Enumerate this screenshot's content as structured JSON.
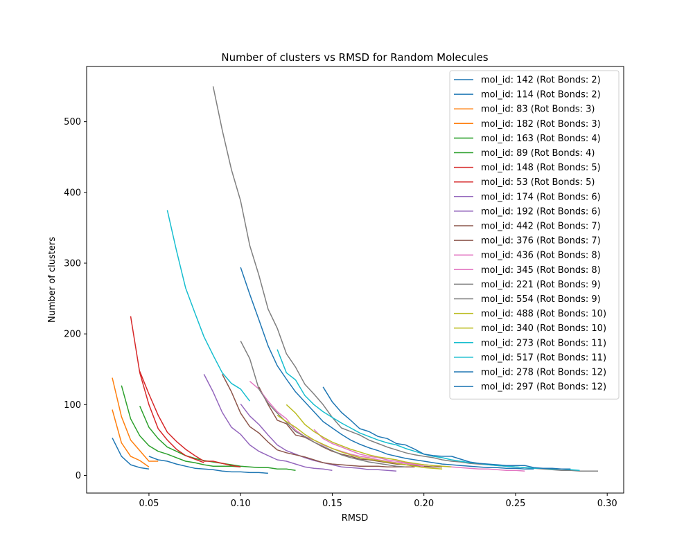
{
  "chart_data": {
    "type": "line",
    "title": "Number of clusters vs RMSD for Random Molecules",
    "xlabel": "RMSD",
    "ylabel": "Number of clusters",
    "xlim": [
      0.016,
      0.309
    ],
    "ylim": [
      -25,
      578
    ],
    "xticks": [
      0.05,
      0.1,
      0.15,
      0.2,
      0.25,
      0.3
    ],
    "xtick_labels": [
      "0.05",
      "0.10",
      "0.15",
      "0.20",
      "0.25",
      "0.30"
    ],
    "yticks": [
      0,
      100,
      200,
      300,
      400,
      500
    ],
    "ytick_labels": [
      "0",
      "100",
      "200",
      "300",
      "400",
      "500"
    ],
    "grid": false,
    "legend_position": "top-right",
    "series": [
      {
        "name": "mol_id: 142 (Rot Bonds: 2)",
        "color": "#1f77b4",
        "x": [
          0.03,
          0.035,
          0.04,
          0.045,
          0.05
        ],
        "y": [
          53,
          27,
          15,
          11,
          9
        ]
      },
      {
        "name": "mol_id: 114 (Rot Bonds: 2)",
        "color": "#1f77b4",
        "x": [
          0.05,
          0.055,
          0.06,
          0.065,
          0.07,
          0.075,
          0.08,
          0.085,
          0.09,
          0.095,
          0.1,
          0.105,
          0.11,
          0.115
        ],
        "y": [
          27,
          22,
          20,
          16,
          13,
          10,
          9,
          8,
          6,
          5,
          5,
          4,
          4,
          3
        ]
      },
      {
        "name": "mol_id: 83 (Rot Bonds: 3)",
        "color": "#ff7f0e",
        "x": [
          0.03,
          0.035,
          0.04,
          0.045,
          0.05
        ],
        "y": [
          93,
          46,
          27,
          21,
          12
        ]
      },
      {
        "name": "mol_id: 182 (Rot Bonds: 3)",
        "color": "#ff7f0e",
        "x": [
          0.03,
          0.035,
          0.04,
          0.045,
          0.05,
          0.055
        ],
        "y": [
          138,
          83,
          50,
          35,
          20,
          20
        ]
      },
      {
        "name": "mol_id: 163 (Rot Bonds: 4)",
        "color": "#2ca02c",
        "x": [
          0.035,
          0.04,
          0.045,
          0.05,
          0.055,
          0.06,
          0.065,
          0.07,
          0.075,
          0.08,
          0.085,
          0.09,
          0.095,
          0.1
        ],
        "y": [
          127,
          80,
          56,
          42,
          34,
          30,
          25,
          20,
          18,
          15,
          13,
          13,
          13,
          12
        ]
      },
      {
        "name": "mol_id: 89 (Rot Bonds: 4)",
        "color": "#2ca02c",
        "x": [
          0.045,
          0.05,
          0.055,
          0.06,
          0.065,
          0.07,
          0.075,
          0.08,
          0.085,
          0.09,
          0.095,
          0.1,
          0.105,
          0.11,
          0.115,
          0.12,
          0.125,
          0.13
        ],
        "y": [
          98,
          68,
          52,
          40,
          34,
          28,
          24,
          21,
          19,
          17,
          15,
          13,
          12,
          11,
          11,
          9,
          9,
          7
        ]
      },
      {
        "name": "mol_id: 148 (Rot Bonds: 5)",
        "color": "#d62728",
        "x": [
          0.04,
          0.045,
          0.05,
          0.055,
          0.06,
          0.065,
          0.07,
          0.075,
          0.08
        ],
        "y": [
          225,
          145,
          100,
          66,
          50,
          37,
          28,
          23,
          18
        ]
      },
      {
        "name": "mol_id: 53 (Rot Bonds: 5)",
        "color": "#d62728",
        "x": [
          0.045,
          0.05,
          0.055,
          0.06,
          0.065,
          0.07,
          0.075,
          0.08,
          0.085,
          0.09,
          0.095,
          0.1
        ],
        "y": [
          147,
          115,
          85,
          61,
          48,
          37,
          28,
          20,
          20,
          17,
          14,
          12
        ]
      },
      {
        "name": "mol_id: 174 (Rot Bonds: 6)",
        "color": "#9467bd",
        "x": [
          0.08,
          0.085,
          0.09,
          0.095,
          0.1,
          0.105,
          0.11,
          0.115,
          0.12,
          0.125,
          0.13,
          0.135,
          0.14,
          0.145,
          0.15
        ],
        "y": [
          143,
          118,
          89,
          68,
          58,
          43,
          34,
          28,
          22,
          20,
          16,
          12,
          10,
          9,
          7
        ]
      },
      {
        "name": "mol_id: 192 (Rot Bonds: 6)",
        "color": "#9467bd",
        "x": [
          0.1,
          0.105,
          0.11,
          0.115,
          0.12,
          0.125,
          0.13,
          0.135,
          0.14,
          0.145,
          0.15,
          0.155,
          0.16,
          0.165,
          0.17,
          0.175,
          0.18,
          0.185
        ],
        "y": [
          101,
          84,
          72,
          57,
          43,
          35,
          30,
          25,
          21,
          18,
          15,
          12,
          11,
          10,
          8,
          8,
          7,
          6
        ]
      },
      {
        "name": "mol_id: 442 (Rot Bonds: 7)",
        "color": "#8c564b",
        "x": [
          0.09,
          0.095,
          0.1,
          0.105,
          0.11,
          0.115,
          0.12,
          0.125,
          0.13,
          0.135,
          0.14,
          0.145,
          0.15,
          0.155,
          0.16,
          0.165,
          0.17,
          0.175,
          0.18,
          0.185,
          0.19,
          0.195
        ],
        "y": [
          143,
          118,
          88,
          69,
          60,
          47,
          36,
          32,
          29,
          26,
          22,
          18,
          16,
          15,
          14,
          13,
          13,
          13,
          12,
          12,
          12,
          12
        ]
      },
      {
        "name": "mol_id: 376 (Rot Bonds: 7)",
        "color": "#8c564b",
        "x": [
          0.11,
          0.115,
          0.12,
          0.125,
          0.13,
          0.135,
          0.14,
          0.145,
          0.15,
          0.155,
          0.16,
          0.165,
          0.17,
          0.175,
          0.18,
          0.185,
          0.19,
          0.195,
          0.2,
          0.205,
          0.21
        ],
        "y": [
          125,
          100,
          78,
          73,
          57,
          54,
          47,
          40,
          34,
          30,
          27,
          23,
          22,
          20,
          18,
          16,
          15,
          14,
          13,
          12,
          12
        ]
      },
      {
        "name": "mol_id: 436 (Rot Bonds: 8)",
        "color": "#e377c2",
        "x": [
          0.105,
          0.11,
          0.115,
          0.12,
          0.125,
          0.13,
          0.135,
          0.14,
          0.145,
          0.15,
          0.155,
          0.16,
          0.165,
          0.17,
          0.175,
          0.18,
          0.185,
          0.19,
          0.195,
          0.2
        ],
        "y": [
          133,
          122,
          105,
          90,
          80,
          64,
          55,
          50,
          43,
          38,
          34,
          30,
          27,
          25,
          22,
          20,
          18,
          17,
          15,
          13
        ]
      },
      {
        "name": "mol_id: 345 (Rot Bonds: 8)",
        "color": "#e377c2",
        "x": [
          0.14,
          0.145,
          0.15,
          0.155,
          0.16,
          0.165,
          0.17,
          0.175,
          0.18,
          0.185,
          0.19,
          0.195,
          0.2,
          0.205,
          0.21,
          0.215,
          0.22,
          0.225,
          0.23,
          0.235,
          0.24,
          0.245,
          0.25,
          0.255
        ],
        "y": [
          65,
          52,
          45,
          40,
          35,
          30,
          27,
          25,
          22,
          20,
          18,
          16,
          15,
          14,
          13,
          12,
          11,
          10,
          9,
          9,
          8,
          7,
          7,
          6
        ]
      },
      {
        "name": "mol_id: 221 (Rot Bonds: 9)",
        "color": "#7f7f7f",
        "x": [
          0.1,
          0.105,
          0.11,
          0.115,
          0.12,
          0.125,
          0.13,
          0.135,
          0.14,
          0.145,
          0.15,
          0.155,
          0.16,
          0.165,
          0.17,
          0.175,
          0.18,
          0.185,
          0.19
        ],
        "y": [
          190,
          165,
          122,
          102,
          88,
          75,
          62,
          55,
          47,
          41,
          35,
          29,
          25,
          22,
          19,
          17,
          15,
          13,
          12
        ]
      },
      {
        "name": "mol_id: 554 (Rot Bonds: 9)",
        "color": "#7f7f7f",
        "x": [
          0.085,
          0.09,
          0.095,
          0.1,
          0.105,
          0.11,
          0.115,
          0.12,
          0.125,
          0.13,
          0.135,
          0.14,
          0.145,
          0.15,
          0.155,
          0.16,
          0.165,
          0.17,
          0.175,
          0.18,
          0.185,
          0.19,
          0.195,
          0.2,
          0.205,
          0.21,
          0.215,
          0.22,
          0.225,
          0.23,
          0.235,
          0.24,
          0.245,
          0.25,
          0.255,
          0.26,
          0.265,
          0.27,
          0.275,
          0.28,
          0.285,
          0.29,
          0.295
        ],
        "y": [
          550,
          488,
          432,
          388,
          325,
          283,
          235,
          208,
          172,
          153,
          129,
          115,
          100,
          82,
          67,
          62,
          57,
          50,
          45,
          40,
          36,
          32,
          29,
          27,
          25,
          22,
          20,
          19,
          17,
          16,
          15,
          14,
          13,
          12,
          11,
          10,
          9,
          8,
          7,
          7,
          6,
          6,
          6
        ]
      },
      {
        "name": "mol_id: 488 (Rot Bonds: 10)",
        "color": "#bcbd22",
        "x": [
          0.125,
          0.13,
          0.135,
          0.14,
          0.145,
          0.15,
          0.155,
          0.16,
          0.165,
          0.17,
          0.175,
          0.18,
          0.185,
          0.19,
          0.195,
          0.2,
          0.205,
          0.21,
          0.215
        ],
        "y": [
          100,
          88,
          72,
          62,
          54,
          47,
          42,
          37,
          33,
          29,
          26,
          24,
          22,
          19,
          17,
          15,
          14,
          13,
          12
        ]
      },
      {
        "name": "mol_id: 340 (Rot Bonds: 10)",
        "color": "#bcbd22",
        "x": [
          0.12,
          0.125,
          0.13,
          0.135,
          0.14,
          0.145,
          0.15,
          0.155,
          0.16,
          0.165,
          0.17,
          0.175,
          0.18,
          0.185,
          0.19,
          0.195,
          0.2,
          0.205,
          0.21
        ],
        "y": [
          85,
          76,
          68,
          58,
          50,
          44,
          38,
          33,
          29,
          25,
          23,
          21,
          19,
          17,
          15,
          13,
          11,
          10,
          9
        ]
      },
      {
        "name": "mol_id: 273 (Rot Bonds: 11)",
        "color": "#17becf",
        "x": [
          0.06,
          0.065,
          0.07,
          0.075,
          0.08,
          0.085,
          0.09,
          0.095,
          0.1,
          0.105
        ],
        "y": [
          375,
          318,
          265,
          230,
          196,
          170,
          145,
          130,
          122,
          105
        ]
      },
      {
        "name": "mol_id: 517 (Rot Bonds: 11)",
        "color": "#17becf",
        "x": [
          0.12,
          0.125,
          0.13,
          0.135,
          0.14,
          0.145,
          0.15,
          0.155,
          0.16,
          0.165,
          0.17,
          0.175,
          0.18,
          0.185,
          0.19,
          0.195,
          0.2,
          0.205,
          0.21,
          0.215,
          0.22,
          0.225,
          0.23,
          0.235,
          0.24,
          0.245,
          0.25,
          0.255,
          0.26,
          0.265,
          0.27,
          0.275,
          0.28,
          0.285
        ],
        "y": [
          178,
          145,
          135,
          113,
          100,
          90,
          82,
          74,
          67,
          60,
          55,
          50,
          46,
          43,
          38,
          34,
          30,
          27,
          25,
          22,
          20,
          18,
          17,
          15,
          14,
          13,
          12,
          11,
          10,
          10,
          9,
          9,
          8,
          7
        ]
      },
      {
        "name": "mol_id: 278 (Rot Bonds: 12)",
        "color": "#1f77b4",
        "x": [
          0.1,
          0.105,
          0.11,
          0.115,
          0.12,
          0.125,
          0.13,
          0.135,
          0.14,
          0.145,
          0.15,
          0.155,
          0.16,
          0.165,
          0.17,
          0.175,
          0.18,
          0.185,
          0.19,
          0.195,
          0.2,
          0.205,
          0.21,
          0.215,
          0.22,
          0.225,
          0.23,
          0.235,
          0.24,
          0.245,
          0.25,
          0.255,
          0.26
        ],
        "y": [
          294,
          256,
          220,
          183,
          155,
          136,
          118,
          104,
          90,
          76,
          67,
          58,
          50,
          44,
          39,
          35,
          30,
          27,
          24,
          22,
          20,
          18,
          16,
          15,
          14,
          13,
          12,
          11,
          11,
          10,
          10,
          9,
          9
        ]
      },
      {
        "name": "mol_id: 297 (Rot Bonds: 12)",
        "color": "#1f77b4",
        "x": [
          0.145,
          0.15,
          0.155,
          0.16,
          0.165,
          0.17,
          0.175,
          0.18,
          0.185,
          0.19,
          0.195,
          0.2,
          0.205,
          0.21,
          0.215,
          0.22,
          0.225,
          0.23,
          0.235,
          0.24,
          0.245,
          0.25,
          0.255,
          0.26,
          0.265,
          0.27,
          0.275,
          0.28
        ],
        "y": [
          125,
          104,
          89,
          78,
          66,
          62,
          55,
          52,
          45,
          43,
          37,
          30,
          28,
          27,
          27,
          23,
          19,
          17,
          16,
          15,
          14,
          14,
          14,
          11,
          10,
          10,
          9,
          9
        ]
      }
    ]
  }
}
